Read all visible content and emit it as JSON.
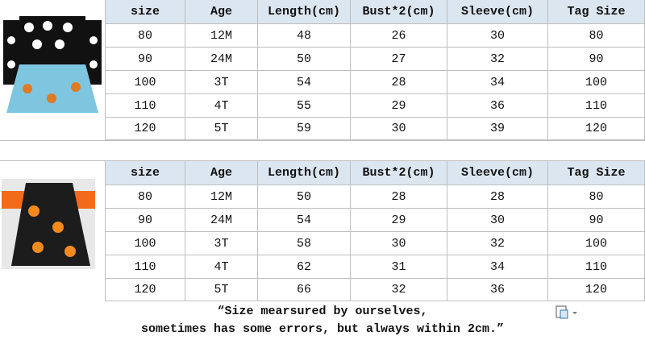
{
  "tables": [
    {
      "headers": [
        "size",
        "Age",
        "Length(cm)",
        "Bust*2(cm)",
        "Sleeve(cm)",
        "Tag Size"
      ],
      "rows": [
        [
          "80",
          "12M",
          "48",
          "26",
          "30",
          "80"
        ],
        [
          "90",
          "24M",
          "50",
          "27",
          "32",
          "90"
        ],
        [
          "100",
          "3T",
          "54",
          "28",
          "34",
          "100"
        ],
        [
          "110",
          "4T",
          "55",
          "29",
          "36",
          "110"
        ],
        [
          "120",
          "5T",
          "59",
          "30",
          "39",
          "120"
        ]
      ]
    },
    {
      "headers": [
        "size",
        "Age",
        "Length(cm)",
        "Bust*2(cm)",
        "Sleeve(cm)",
        "Tag Size"
      ],
      "rows": [
        [
          "80",
          "12M",
          "50",
          "28",
          "28",
          "80"
        ],
        [
          "90",
          "24M",
          "54",
          "29",
          "30",
          "90"
        ],
        [
          "100",
          "3T",
          "58",
          "30",
          "32",
          "100"
        ],
        [
          "110",
          "4T",
          "62",
          "31",
          "34",
          "110"
        ],
        [
          "120",
          "5T",
          "66",
          "32",
          "36",
          "120"
        ]
      ]
    }
  ],
  "note": [
    "“Size mearsured by ourselves,",
    "sometimes has some errors, but always within 2cm.”"
  ]
}
